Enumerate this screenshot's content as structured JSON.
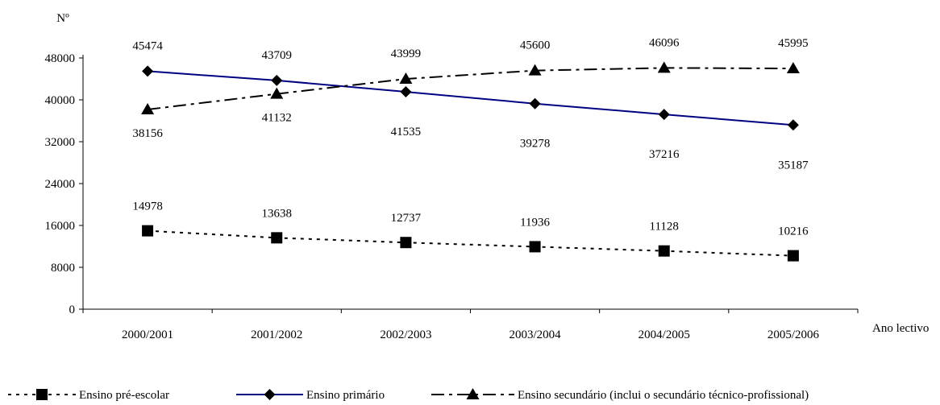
{
  "chart_data": {
    "type": "line",
    "title": "",
    "ylabel": "Nº",
    "xlabel": "Ano lectivo",
    "ylim": [
      0,
      48000
    ],
    "yticks": [
      0,
      8000,
      16000,
      24000,
      32000,
      40000,
      48000
    ],
    "categories": [
      "2000/2001",
      "2001/2002",
      "2002/2003",
      "2003/2004",
      "2004/2005",
      "2005/2006"
    ],
    "grid": false,
    "legend_position": "bottom",
    "series": [
      {
        "name": "Ensino pré-escolar",
        "values": [
          14978,
          13638,
          12737,
          11936,
          11128,
          10216
        ],
        "color": "#000000",
        "marker": "square",
        "line_style": "dotted"
      },
      {
        "name": "Ensino primário",
        "values": [
          45474,
          43709,
          41535,
          39278,
          37216,
          35187
        ],
        "color": "#000080",
        "marker": "diamond",
        "line_style": "solid"
      },
      {
        "name": "Ensino secundário (inclui o secundário técnico-profissional)",
        "values": [
          38156,
          41132,
          43999,
          45600,
          46096,
          45995
        ],
        "color": "#000000",
        "marker": "triangle",
        "line_style": "dashdot"
      }
    ]
  }
}
